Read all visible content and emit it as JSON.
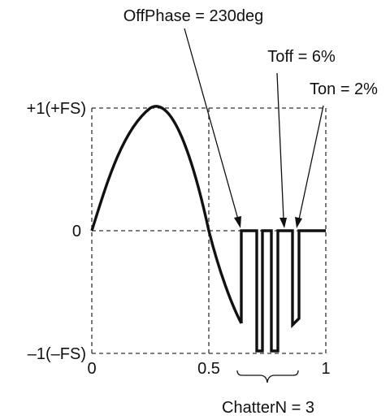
{
  "annotations": {
    "off_phase": "OffPhase = 230deg",
    "t_off": "Toff = 6%",
    "t_on": "Ton = 2%",
    "chatter_n": "ChatterN = 3"
  },
  "axes": {
    "y_top": "+1(+FS)",
    "y_mid": "0",
    "y_bottom": "–1(–FS)",
    "x_start": "0",
    "x_mid": "0.5",
    "x_end": "1"
  },
  "colors": {
    "stroke": "#111111",
    "guide": "#333333",
    "background": "#ffffff"
  }
}
